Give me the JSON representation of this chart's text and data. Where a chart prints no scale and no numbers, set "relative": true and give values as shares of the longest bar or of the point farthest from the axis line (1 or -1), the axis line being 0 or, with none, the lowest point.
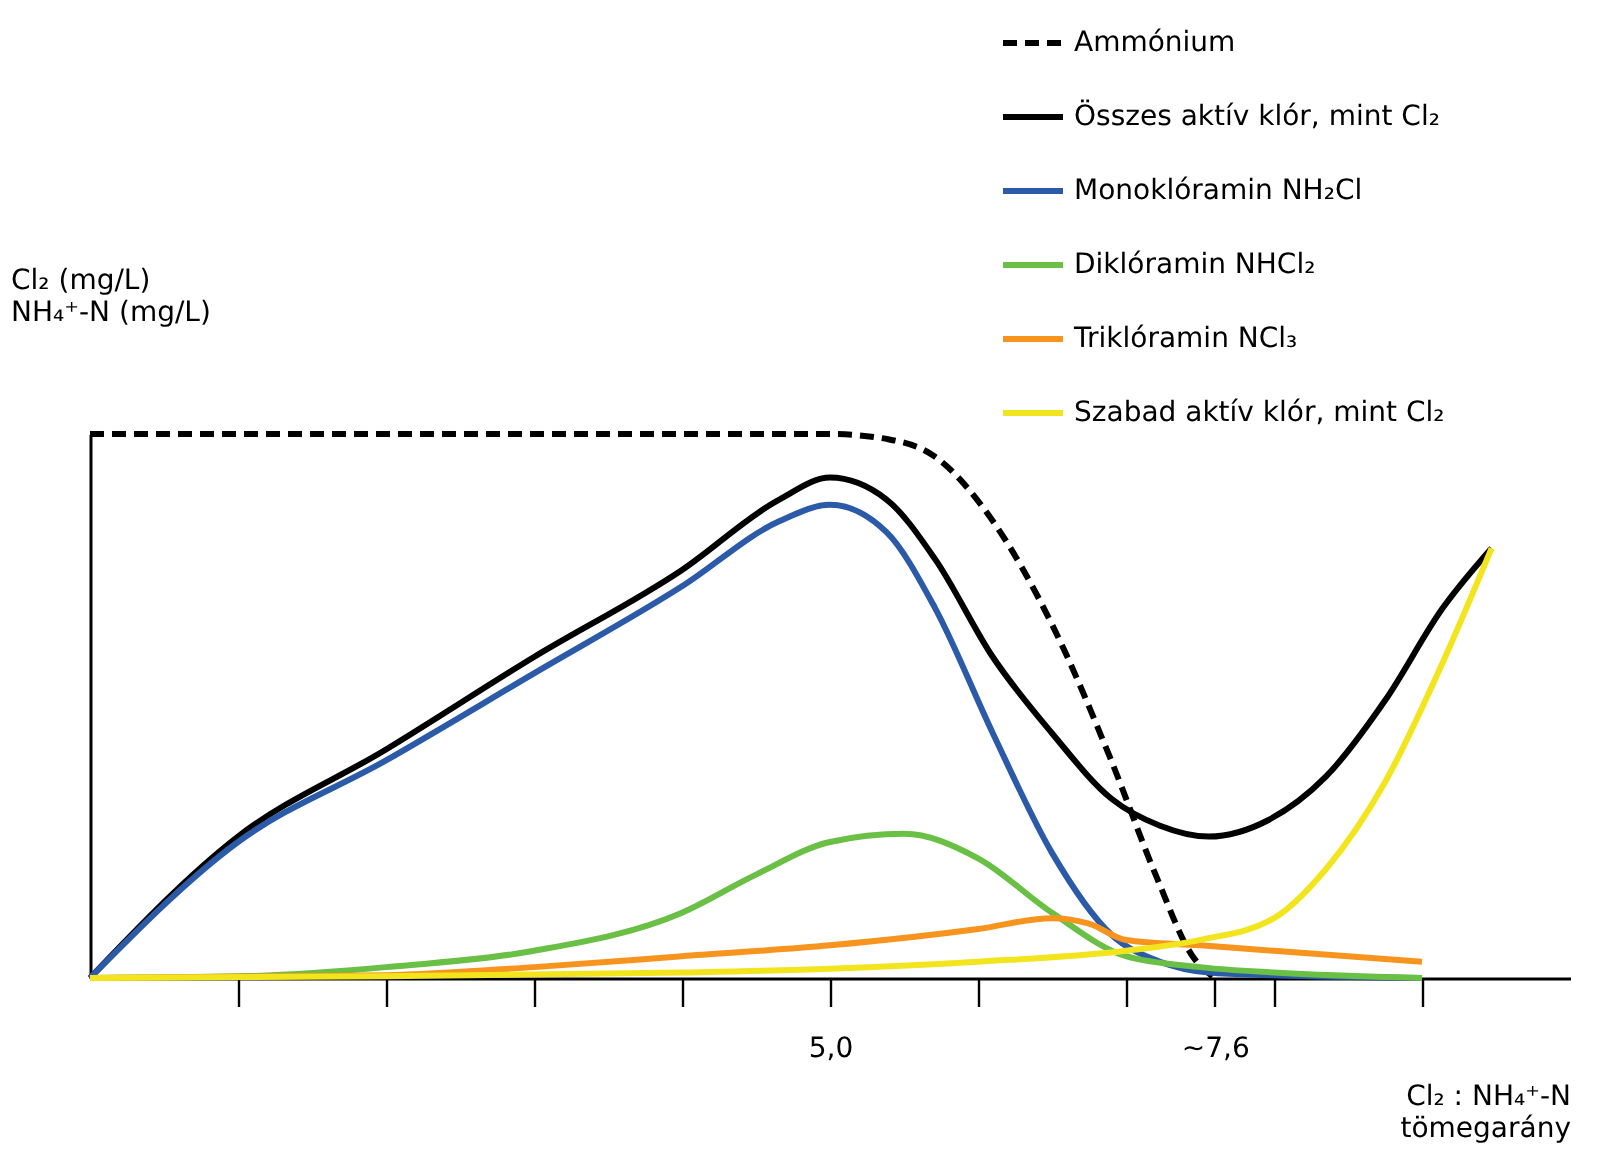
{
  "chart_data": {
    "type": "line",
    "relative": true,
    "xlabel": "Cl₂ : NH₄⁺-N\ntömegarány",
    "ylabel": "Cl₂ (mg/L)\nNH₄⁺-N (mg/L)",
    "xlim": [
      0,
      10
    ],
    "xticks": [
      {
        "value": 1,
        "label": null
      },
      {
        "value": 2,
        "label": null
      },
      {
        "value": 3,
        "label": null
      },
      {
        "value": 4,
        "label": null
      },
      {
        "value": 5,
        "label": "5,0"
      },
      {
        "value": 6,
        "label": null
      },
      {
        "value": 7,
        "label": null
      },
      {
        "value": 7.6,
        "label": "~7,6"
      },
      {
        "value": 8,
        "label": null
      },
      {
        "value": 9,
        "label": null
      }
    ],
    "grid": false,
    "legend": "top right",
    "marker": "none",
    "series": [
      {
        "name": "Ammónium",
        "color": "#000000",
        "line_style": "dashed",
        "x": [
          0,
          1,
          2,
          3,
          4,
          5,
          5.4,
          5.7,
          6.1,
          6.5,
          6.9,
          7.2,
          7.45,
          7.6
        ],
        "values": [
          1,
          1,
          1,
          1,
          1,
          1,
          0.99,
          0.96,
          0.84,
          0.65,
          0.4,
          0.19,
          0.04,
          0
        ]
      },
      {
        "name": "Összes aktív klór, mint Cl₂",
        "color": "#000000",
        "line_style": "solid",
        "x": [
          0,
          1,
          2,
          3,
          4,
          4.66,
          5,
          5.38,
          5.71,
          6.1,
          6.5,
          6.9,
          7.23,
          7.56,
          7.96,
          8.35,
          8.75,
          9.14,
          9.47
        ],
        "values": [
          0,
          0.26,
          0.42,
          0.59,
          0.75,
          0.88,
          0.92,
          0.88,
          0.77,
          0.59,
          0.45,
          0.33,
          0.28,
          0.26,
          0.29,
          0.37,
          0.51,
          0.68,
          0.79
        ]
      },
      {
        "name": "Monoklóramin NH₂Cl",
        "color": "#2b5aa8",
        "line_style": "solid",
        "x": [
          0,
          1,
          2,
          3,
          4,
          4.66,
          5,
          5.38,
          5.71,
          6.1,
          6.5,
          6.9,
          7.23,
          7.56,
          8,
          9
        ],
        "values": [
          0,
          0.25,
          0.4,
          0.56,
          0.72,
          0.84,
          0.87,
          0.82,
          0.68,
          0.45,
          0.23,
          0.08,
          0.03,
          0.01,
          0.005,
          0
        ]
      },
      {
        "name": "Diklóramin NHCl₂",
        "color": "#6abf45",
        "line_style": "solid",
        "x": [
          0,
          1,
          2,
          3,
          4,
          4.5,
          5,
          5.5,
          6,
          6.5,
          7,
          7.5,
          8,
          9
        ],
        "values": [
          0,
          0.003,
          0.02,
          0.05,
          0.12,
          0.19,
          0.25,
          0.265,
          0.22,
          0.12,
          0.04,
          0.02,
          0.01,
          0
        ]
      },
      {
        "name": "Triklóramin NCl₃",
        "color": "#f7941d",
        "line_style": "solid",
        "x": [
          0,
          2,
          3,
          4,
          5,
          6,
          6.5,
          6.75,
          7,
          7.5,
          8,
          9
        ],
        "values": [
          0,
          0.005,
          0.02,
          0.04,
          0.06,
          0.09,
          0.11,
          0.1,
          0.07,
          0.06,
          0.05,
          0.03
        ]
      },
      {
        "name": "Szabad aktív klór, mint Cl₂",
        "color": "#f2e51d",
        "line_style": "solid",
        "x": [
          0,
          2,
          4,
          5,
          6,
          7,
          7.5,
          8,
          8.35,
          8.75,
          9.14,
          9.47
        ],
        "values": [
          0,
          0.003,
          0.01,
          0.017,
          0.03,
          0.05,
          0.07,
          0.11,
          0.2,
          0.36,
          0.58,
          0.79
        ]
      }
    ]
  }
}
